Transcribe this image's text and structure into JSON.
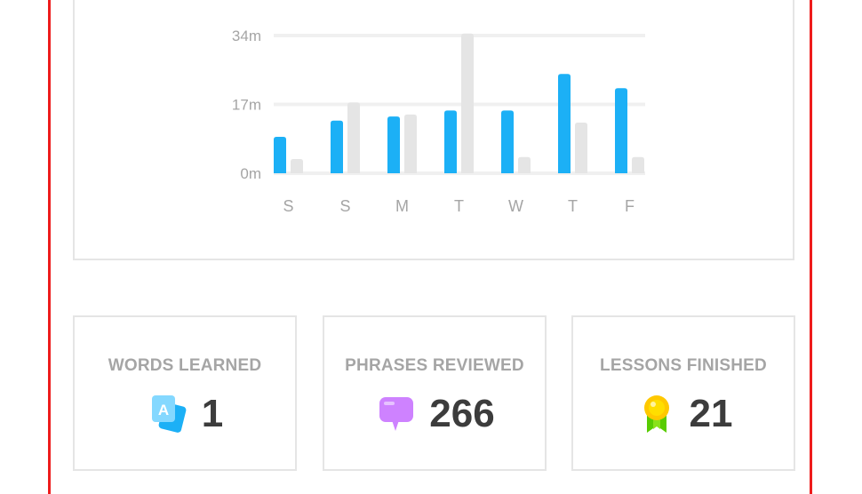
{
  "colors": {
    "accent": "#1cb0f6",
    "previous": "#e5e5e5",
    "frame": "#ee1c1c"
  },
  "chart_data": {
    "type": "bar",
    "categories": [
      "S",
      "S",
      "M",
      "T",
      "W",
      "T",
      "F"
    ],
    "series": [
      {
        "values": [
          9,
          13,
          14,
          15.5,
          15.5,
          24.5,
          21
        ],
        "color": "#1cb0f6"
      },
      {
        "values": [
          3.5,
          17.5,
          14.5,
          34.5,
          4,
          12.5,
          4
        ],
        "color": "#e5e5e5"
      }
    ],
    "yticks": [
      "0m",
      "17m",
      "34m"
    ],
    "ytick_values": [
      0,
      17,
      34
    ],
    "ylim": [
      0,
      34
    ],
    "grid": true,
    "legend": "none"
  },
  "stats": [
    {
      "title": "WORDS LEARNED",
      "value": "1",
      "icon": "flashcards-icon"
    },
    {
      "title": "PHRASES REVIEWED",
      "value": "266",
      "icon": "speech-bubble-icon"
    },
    {
      "title": "LESSONS FINISHED",
      "value": "21",
      "icon": "medal-icon"
    }
  ]
}
